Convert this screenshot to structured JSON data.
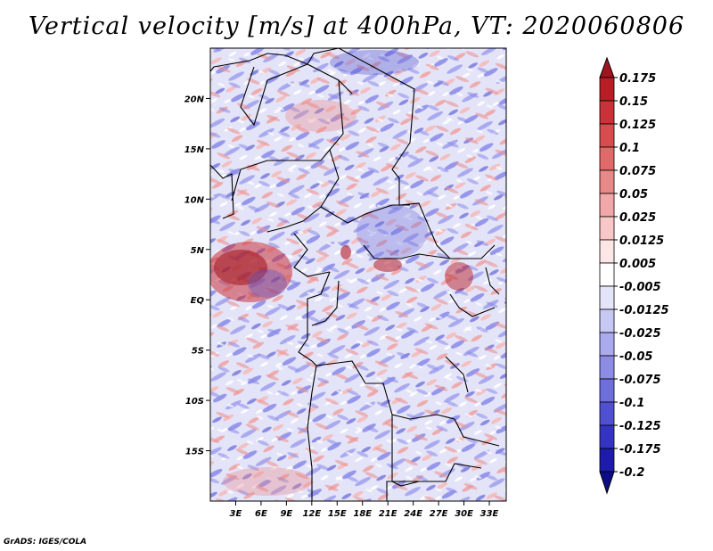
{
  "title": "Vertical velocity [m/s] at 400hPa, VT: 2020060806",
  "credit": "GrADS: IGES/COLA",
  "map": {
    "lat_labels": [
      "20N",
      "15N",
      "10N",
      "5N",
      "EQ",
      "5S",
      "10S",
      "15S"
    ],
    "lat_values": [
      20,
      15,
      10,
      5,
      0,
      -5,
      -10,
      -15
    ],
    "lon_labels": [
      "3E",
      "6E",
      "9E",
      "12E",
      "15E",
      "18E",
      "21E",
      "24E",
      "27E",
      "30E",
      "33E"
    ],
    "lon_values": [
      3,
      6,
      9,
      12,
      15,
      18,
      21,
      24,
      27,
      30,
      33
    ],
    "lat_range": [
      -20,
      25
    ],
    "lon_range": [
      0,
      35
    ]
  },
  "colorbar": {
    "labels": [
      "0.175",
      "0.15",
      "0.125",
      "0.1",
      "0.075",
      "0.05",
      "0.025",
      "0.0125",
      "0.005",
      "-0.005",
      "-0.0125",
      "-0.025",
      "-0.05",
      "-0.075",
      "-0.1",
      "-0.125",
      "-0.175",
      "-0.2"
    ],
    "colors": [
      "#a0141e",
      "#b81e26",
      "#c8333a",
      "#d64d50",
      "#e06a6a",
      "#e98888",
      "#f2a8a8",
      "#f8c8c8",
      "#fde6e6",
      "#ffffff",
      "#e4e4fb",
      "#c8c8f5",
      "#aaaaef",
      "#8c8ce6",
      "#6f6fdc",
      "#5151cf",
      "#3434c0",
      "#1c1ca8",
      "#0c0c88"
    ],
    "top_arrow_color": "#a0141e",
    "bottom_arrow_color": "#0c0c88"
  }
}
